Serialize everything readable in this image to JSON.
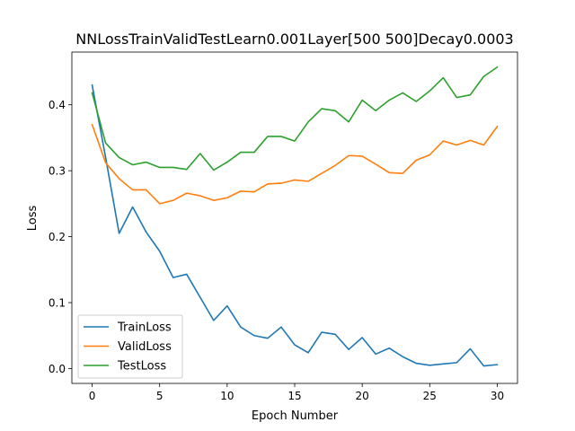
{
  "chart_data": {
    "type": "line",
    "title": "NNLossTrainValidTestLearn0.001Layer[500 500]Decay0.0003",
    "xlabel": "Epoch Number",
    "ylabel": "Loss",
    "xlim": [
      -1.5,
      31.5
    ],
    "ylim": [
      -0.0225,
      0.4799
    ],
    "xticks": [
      0,
      5,
      10,
      15,
      20,
      25,
      30
    ],
    "yticks": [
      0.0,
      0.1,
      0.2,
      0.3,
      0.4
    ],
    "xtick_labels": [
      "0",
      "5",
      "10",
      "15",
      "20",
      "25",
      "30"
    ],
    "ytick_labels": [
      "0.0",
      "0.1",
      "0.2",
      "0.3",
      "0.4"
    ],
    "grid": false,
    "legend": "lower-left",
    "x": [
      0,
      1,
      2,
      3,
      4,
      5,
      6,
      7,
      8,
      9,
      10,
      11,
      12,
      13,
      14,
      15,
      16,
      17,
      18,
      19,
      20,
      21,
      22,
      23,
      24,
      25,
      26,
      27,
      28,
      29,
      30
    ],
    "series": [
      {
        "name": "TrainLoss",
        "color": "#1f77b4",
        "values": [
          0.43,
          0.32,
          0.205,
          0.245,
          0.207,
          0.178,
          0.138,
          0.143,
          0.108,
          0.073,
          0.095,
          0.063,
          0.05,
          0.046,
          0.063,
          0.036,
          0.024,
          0.055,
          0.052,
          0.029,
          0.047,
          0.022,
          0.031,
          0.018,
          0.008,
          0.005,
          0.007,
          0.009,
          0.03,
          0.004,
          0.006
        ]
      },
      {
        "name": "ValidLoss",
        "color": "#ff7f0e",
        "values": [
          0.37,
          0.312,
          0.288,
          0.271,
          0.271,
          0.25,
          0.255,
          0.266,
          0.262,
          0.255,
          0.259,
          0.269,
          0.268,
          0.28,
          0.281,
          0.286,
          0.284,
          0.296,
          0.308,
          0.323,
          0.322,
          0.31,
          0.297,
          0.296,
          0.316,
          0.324,
          0.345,
          0.339,
          0.346,
          0.339,
          0.367
        ]
      },
      {
        "name": "TestLoss",
        "color": "#2ca02c",
        "values": [
          0.418,
          0.342,
          0.32,
          0.309,
          0.313,
          0.305,
          0.305,
          0.302,
          0.326,
          0.301,
          0.313,
          0.328,
          0.328,
          0.352,
          0.352,
          0.345,
          0.374,
          0.394,
          0.391,
          0.374,
          0.407,
          0.391,
          0.407,
          0.418,
          0.405,
          0.421,
          0.441,
          0.411,
          0.415,
          0.443,
          0.457
        ]
      }
    ]
  }
}
